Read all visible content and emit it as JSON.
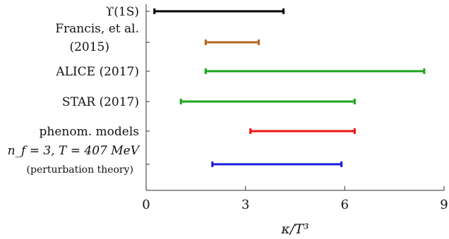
{
  "chart_data": {
    "type": "interval",
    "xlabel": "κ/T³",
    "xlim": [
      0,
      9
    ],
    "xticks": [
      "0",
      "3",
      "6",
      "9"
    ],
    "grid": false,
    "intervals": [
      {
        "label": "ϒ(1S)",
        "low": 0.25,
        "high": 4.15,
        "color": "#000000"
      },
      {
        "label": "Francis, et al.",
        "label2": "(2015)",
        "low": 1.8,
        "high": 3.4,
        "color": "#b5651d"
      },
      {
        "label": "ALICE (2017)",
        "low": 1.8,
        "high": 8.4,
        "color": "#1aa51a"
      },
      {
        "label": "STAR (2017)",
        "low": 1.05,
        "high": 6.3,
        "color": "#1aa51a"
      },
      {
        "label": "phenom. models",
        "low": 3.15,
        "high": 6.3,
        "color": "#ee1111"
      },
      {
        "label": "n_f = 3, T = 407 MeV",
        "label2": "(perturbation theory)",
        "low": 2.0,
        "high": 5.9,
        "color": "#1a1adb"
      }
    ]
  }
}
